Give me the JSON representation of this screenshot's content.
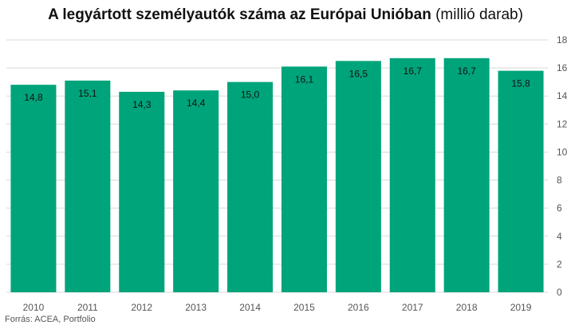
{
  "title": {
    "main": "A legyártott személyautók száma az Európai Unióban",
    "sub": "(millió darab)"
  },
  "source": "Forrás: ACEA, Portfolio",
  "colors": {
    "bar": "#00a47a",
    "grid": "#d9d9d9",
    "axis_text": "#555555",
    "label_text": "#111111"
  },
  "chart_data": {
    "type": "bar",
    "categories": [
      "2010",
      "2011",
      "2012",
      "2013",
      "2014",
      "2015",
      "2016",
      "2017",
      "2018",
      "2019"
    ],
    "values": [
      14.8,
      15.1,
      14.3,
      14.4,
      15.0,
      16.1,
      16.5,
      16.7,
      16.7,
      15.8
    ],
    "value_labels": [
      "14,8",
      "15,1",
      "14,3",
      "14,4",
      "15,0",
      "16,1",
      "16,5",
      "16,7",
      "16,7",
      "15,8"
    ],
    "y_ticks": [
      0,
      2,
      4,
      6,
      8,
      10,
      12,
      14,
      16,
      18
    ],
    "ylim": [
      0,
      18
    ],
    "y_axis_side": "right",
    "grid": true,
    "xlabel": "",
    "ylabel": ""
  }
}
